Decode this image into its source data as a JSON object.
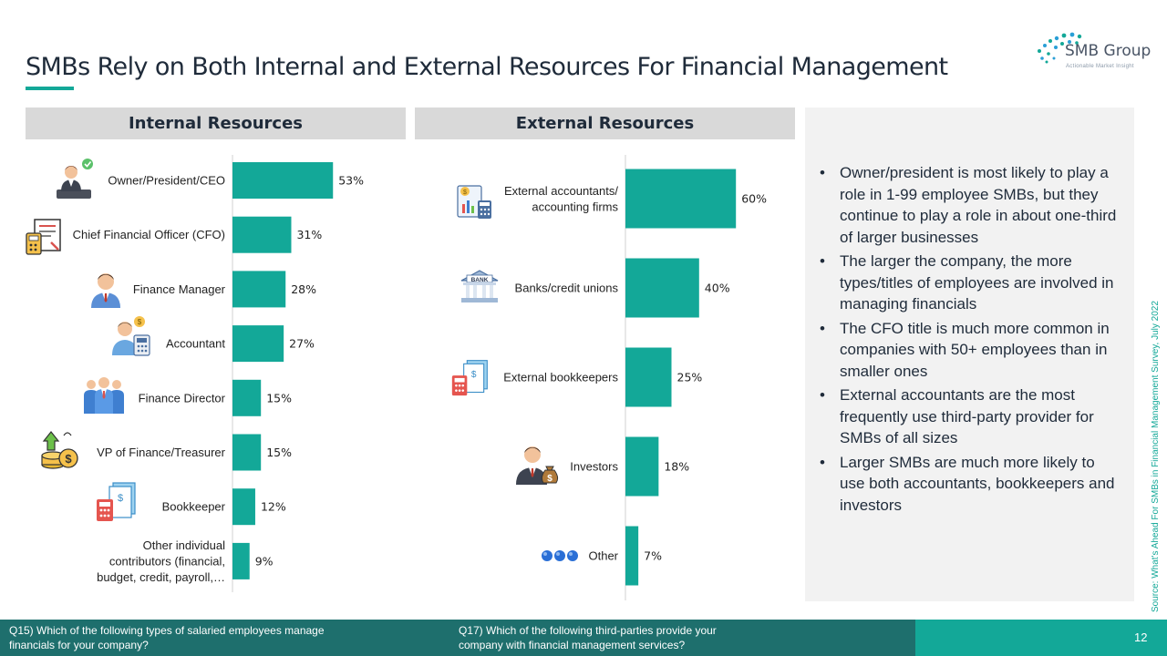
{
  "title": "SMBs Rely on Both Internal and External Resources For Financial Management",
  "logo": {
    "name": "SMB Group",
    "tagline": "Actionable Market Insight"
  },
  "panels": {
    "internal": "Internal Resources",
    "external": "External Resources"
  },
  "colors": {
    "accent": "#13a898",
    "footer_dark": "#1e6f6d",
    "panel_header": "#d9d9d9",
    "notes_bg": "#f2f2f2"
  },
  "notes": [
    "Owner/president is most likely to play a role in 1-99 employee SMBs, but they continue to play a role in about one-third of larger businesses",
    "The larger the company, the more types/titles of employees are involved in managing financials",
    "The CFO title is much more common in companies with 50+ employees than in smaller ones",
    "External accountants are the most frequently use third-party provider for SMBs of all sizes",
    "Larger SMBs are much more likely to use both accountants, bookkeepers and investors"
  ],
  "source": "Source: What's Ahead For SMBs in Financial Management Survey, July 2022",
  "footer": {
    "q15": "Q15) Which of the following types of salaried employees manage financials for your company?",
    "q17": "Q17) Which of the following third-parties provide your company with financial management services?",
    "page": "12"
  },
  "chart_data": [
    {
      "type": "bar",
      "orientation": "horizontal",
      "categories": [
        [
          "Owner/President/CEO"
        ],
        [
          "Chief Financial Officer (CFO)"
        ],
        [
          "Finance Manager"
        ],
        [
          "Accountant"
        ],
        [
          "Finance Director"
        ],
        [
          "VP of Finance/Treasurer"
        ],
        [
          "Bookkeeper"
        ],
        [
          "Other individual",
          "contributors (financial,",
          "budget, credit, payroll,…"
        ]
      ],
      "values": [
        53,
        31,
        28,
        27,
        15,
        15,
        12,
        9
      ],
      "value_suffix": "%",
      "icons": [
        "person-check-icon",
        "calculator-document-icon",
        "manager-icon",
        "accountant-icon",
        "team-icon",
        "money-growth-icon",
        "bookkeeper-icon",
        ""
      ]
    },
    {
      "type": "bar",
      "orientation": "horizontal",
      "categories": [
        [
          "External accountants/",
          "accounting firms"
        ],
        [
          "Banks/credit unions"
        ],
        [
          "External bookkeepers"
        ],
        [
          "Investors"
        ],
        [
          "Other"
        ]
      ],
      "values": [
        60,
        40,
        25,
        18,
        7
      ],
      "value_suffix": "%",
      "icons": [
        "accounting-firm-icon",
        "bank-icon",
        "bookkeeper-icon",
        "investor-icon",
        "three-dots-icon"
      ]
    }
  ]
}
